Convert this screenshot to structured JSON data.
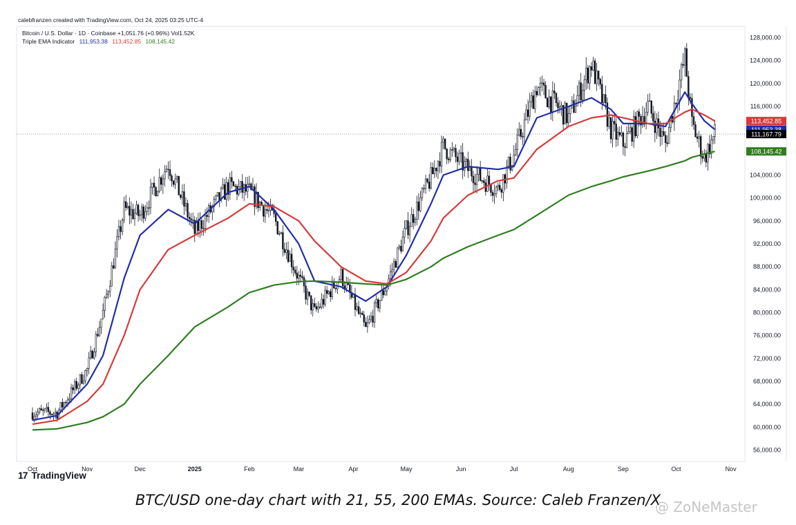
{
  "header": {
    "credit": "calebfranzen created with TradingView.com, Oct 24, 2025 03:25 UTC-4",
    "symbol_line": "Bitcoin / U.S. Dollar · 1D · Coinbase  +1,051.76 (+0.96%)  Vol1.52K",
    "indicator_name": "Triple EMA Indicator",
    "indicator_values": [
      "111,953.38",
      "113,452.85",
      "108,145.42"
    ]
  },
  "colors": {
    "ema21": "#1f2ea6",
    "ema55": "#d63a3a",
    "ema200": "#2e7d1e",
    "candle": "#131722",
    "price_label_bg": "#000000"
  },
  "price_labels": [
    {
      "text": "113,452.85",
      "value": 113452.85,
      "color": "#d63a3a"
    },
    {
      "text": "111,953.38",
      "value": 111953.38,
      "color": "#1f2ea6"
    },
    {
      "text": "111,167.79",
      "value": 111167.79,
      "color": "#000000"
    },
    {
      "text": "108,145.42",
      "value": 108145.42,
      "color": "#2e7d1e"
    }
  ],
  "chart_data": {
    "type": "line",
    "title": "",
    "xlabel": "",
    "ylabel": "",
    "ylim": [
      54000,
      130000
    ],
    "y_ticks": [
      56000,
      60000,
      64000,
      68000,
      72000,
      76000,
      80000,
      84000,
      88000,
      92000,
      96000,
      100000,
      104000,
      108000,
      112000,
      116000,
      120000,
      124000,
      128000
    ],
    "y_tick_labels": [
      "56,000.00",
      "60,000.00",
      "64,000.00",
      "68,000.00",
      "72,000.00",
      "76,000.00",
      "80,000.00",
      "84,000.00",
      "88,000.00",
      "92,000.00",
      "96,000.00",
      "100,000.00",
      "104,000.00",
      "108,000.00",
      "112,000.00",
      "116,000.00",
      "120,000.00",
      "124,000.00",
      "128,000.00"
    ],
    "x_tick_labels": [
      "Oct",
      "Nov",
      "Dec",
      "2025",
      "Feb",
      "Mar",
      "Apr",
      "May",
      "Jun",
      "Jul",
      "Aug",
      "Sep",
      "Oct",
      "Nov"
    ],
    "x": [
      "2024-10-01",
      "2024-10-15",
      "2024-11-01",
      "2024-11-10",
      "2024-11-22",
      "2024-12-01",
      "2024-12-17",
      "2025-01-01",
      "2025-01-20",
      "2025-02-01",
      "2025-02-15",
      "2025-03-01",
      "2025-03-10",
      "2025-03-25",
      "2025-04-08",
      "2025-04-20",
      "2025-05-01",
      "2025-05-15",
      "2025-05-22",
      "2025-06-05",
      "2025-06-22",
      "2025-07-01",
      "2025-07-14",
      "2025-08-01",
      "2025-08-14",
      "2025-08-25",
      "2025-09-01",
      "2025-09-15",
      "2025-09-25",
      "2025-10-06",
      "2025-10-10",
      "2025-10-17",
      "2025-10-23"
    ],
    "series": [
      {
        "name": "Price",
        "values": [
          62500,
          62500,
          70000,
          80000,
          98000,
          97000,
          106000,
          94000,
          102000,
          101000,
          96500,
          86000,
          80000,
          86500,
          77000,
          85000,
          94500,
          103500,
          109000,
          105000,
          101500,
          107500,
          119500,
          114000,
          123500,
          112000,
          109500,
          116000,
          109500,
          124500,
          113000,
          107000,
          111200
        ]
      },
      {
        "name": "21",
        "values": [
          61200,
          62000,
          67500,
          72500,
          86000,
          93500,
          98000,
          95500,
          101000,
          102000,
          98000,
          92000,
          85500,
          84500,
          82000,
          84500,
          90000,
          99000,
          104000,
          105500,
          105000,
          105500,
          114000,
          116000,
          117500,
          115500,
          113000,
          113000,
          112500,
          118500,
          116500,
          113500,
          111953.38
        ]
      },
      {
        "name": "55",
        "values": [
          60500,
          61200,
          64500,
          67500,
          76000,
          84000,
          91000,
          93500,
          96500,
          99000,
          98500,
          96000,
          92500,
          88000,
          85500,
          85000,
          87000,
          92500,
          96500,
          100500,
          103000,
          103500,
          108500,
          112500,
          114000,
          114500,
          114000,
          113000,
          113000,
          115000,
          115500,
          114500,
          113452.85
        ]
      },
      {
        "name": "200",
        "values": [
          59500,
          59700,
          60800,
          61800,
          64000,
          67500,
          72500,
          77500,
          81000,
          83500,
          84800,
          85400,
          85500,
          85300,
          85000,
          84800,
          85800,
          88000,
          89500,
          91500,
          93500,
          94500,
          97000,
          100500,
          102000,
          103000,
          103700,
          104700,
          105500,
          106500,
          107100,
          107700,
          108145.42
        ]
      }
    ]
  }
}
